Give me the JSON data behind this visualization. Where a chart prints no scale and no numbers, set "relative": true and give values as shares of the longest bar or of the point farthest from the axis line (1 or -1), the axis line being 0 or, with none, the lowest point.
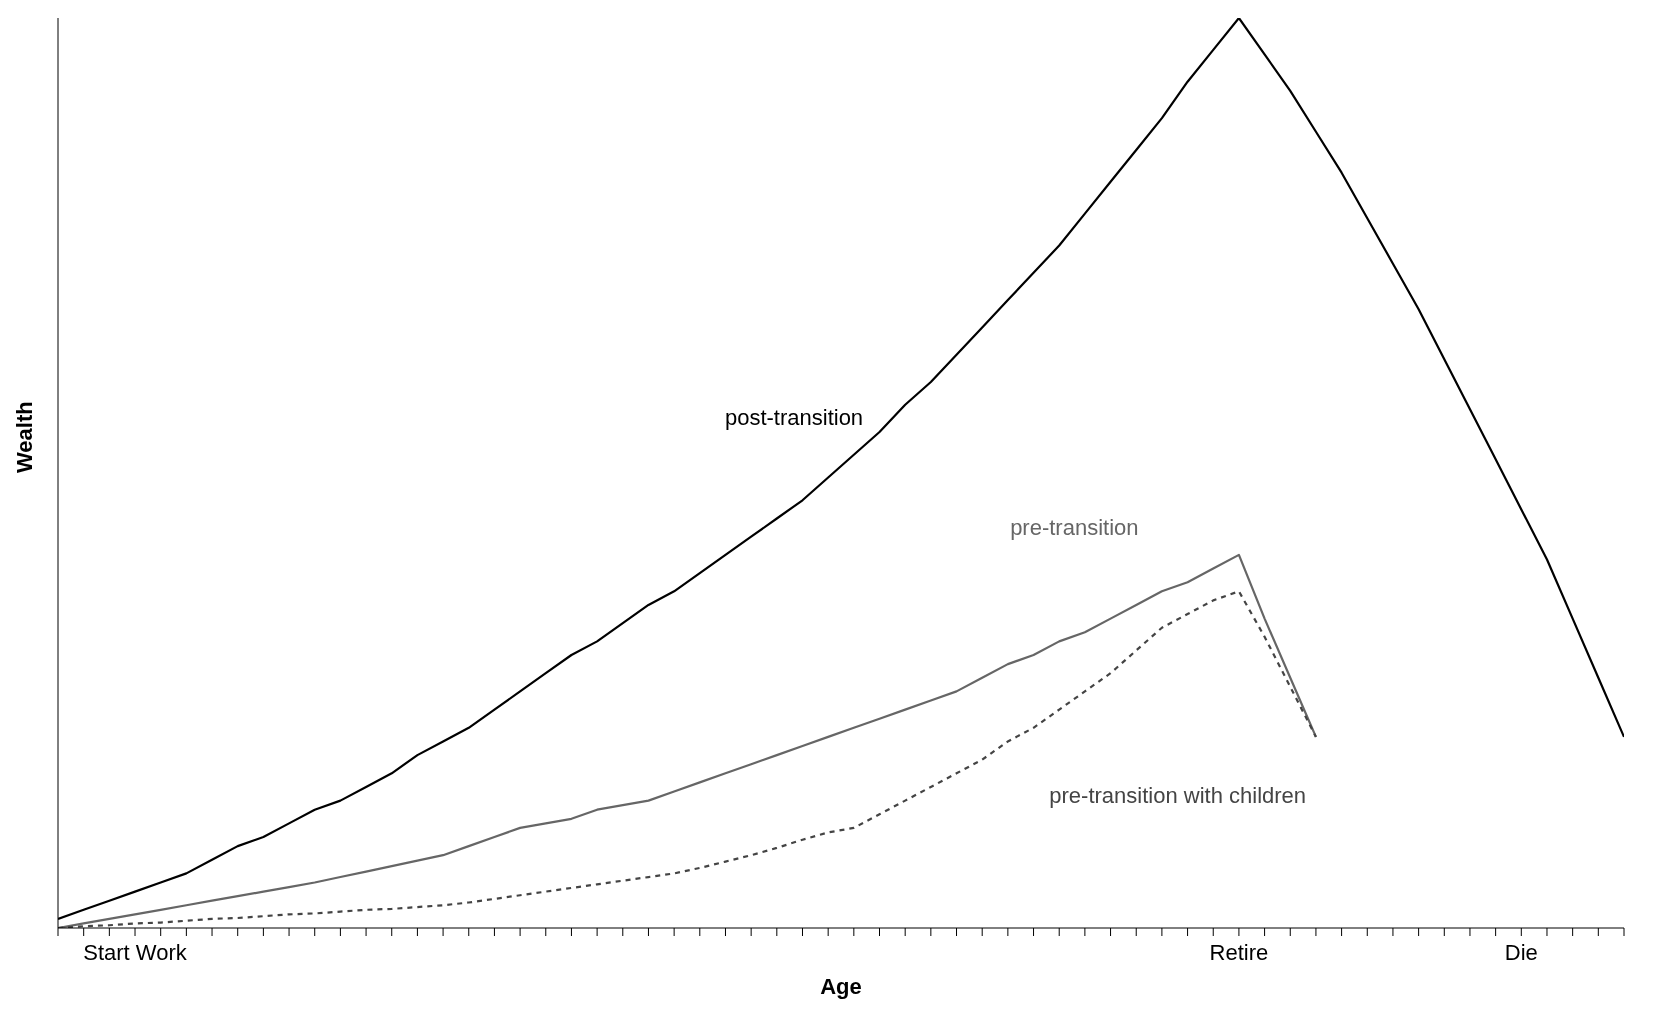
{
  "chart_data": {
    "type": "line",
    "relative": true,
    "xlabel": "Age",
    "ylabel": "Wealth",
    "categories": [
      null,
      null,
      null,
      "Start Work",
      null,
      null,
      null,
      null,
      null,
      null,
      null,
      null,
      null,
      null,
      null,
      null,
      null,
      null,
      null,
      null,
      null,
      null,
      null,
      null,
      null,
      null,
      null,
      null,
      null,
      null,
      null,
      null,
      null,
      null,
      null,
      null,
      null,
      null,
      null,
      null,
      null,
      null,
      null,
      null,
      null,
      null,
      "Retire",
      null,
      null,
      null,
      null,
      null,
      null,
      null,
      null,
      null,
      null,
      "Die",
      null,
      null,
      null,
      null
    ],
    "marker": "none",
    "grid": false,
    "legend": false,
    "series": [
      {
        "name": "post-transition",
        "color": "#000000",
        "line_style": "solid",
        "values": [
          0.01,
          0.02,
          0.03,
          0.04,
          0.05,
          0.06,
          0.075,
          0.09,
          0.1,
          0.115,
          0.13,
          0.14,
          0.155,
          0.17,
          0.19,
          0.205,
          0.22,
          0.24,
          0.26,
          0.28,
          0.3,
          0.315,
          0.335,
          0.355,
          0.37,
          0.39,
          0.41,
          0.43,
          0.45,
          0.47,
          0.495,
          0.52,
          0.545,
          0.575,
          0.6,
          0.63,
          0.66,
          0.69,
          0.72,
          0.75,
          0.785,
          0.82,
          0.855,
          0.89,
          0.93,
          0.965,
          1,
          0.96,
          0.92,
          0.875,
          0.83,
          0.78,
          0.73,
          0.68,
          0.625,
          0.57,
          0.515,
          0.46,
          0.405,
          0.34,
          0.275,
          0.21
        ]
      },
      {
        "name": "pre-transition",
        "color": "#666666",
        "line_style": "solid",
        "values": [
          0,
          0.005,
          0.01,
          0.015,
          0.02,
          0.025,
          0.03,
          0.035,
          0.04,
          0.045,
          0.05,
          0.056,
          0.062,
          0.068,
          0.074,
          0.08,
          0.09,
          0.1,
          0.11,
          0.115,
          0.12,
          0.13,
          0.135,
          0.14,
          0.15,
          0.16,
          0.17,
          0.18,
          0.19,
          0.2,
          0.21,
          0.22,
          0.23,
          0.24,
          0.25,
          0.26,
          0.275,
          0.29,
          0.3,
          0.315,
          0.325,
          0.34,
          0.355,
          0.37,
          0.38,
          0.395,
          0.41,
          0.34,
          0.275,
          0.21,
          null,
          null,
          null,
          null,
          null,
          null,
          null,
          null,
          null,
          null,
          null,
          null
        ]
      },
      {
        "name": "pre-transition with children",
        "color": "#444444",
        "line_style": "dashed",
        "values": [
          0,
          0.002,
          0.003,
          0.005,
          0.006,
          0.008,
          0.01,
          0.011,
          0.013,
          0.015,
          0.016,
          0.018,
          0.02,
          0.021,
          0.023,
          0.025,
          0.028,
          0.032,
          0.036,
          0.04,
          0.044,
          0.048,
          0.052,
          0.056,
          0.06,
          0.066,
          0.073,
          0.08,
          0.088,
          0.097,
          0.105,
          0.11,
          0.125,
          0.14,
          0.155,
          0.17,
          0.185,
          0.205,
          0.22,
          0.24,
          0.26,
          0.28,
          0.305,
          0.33,
          0.345,
          0.36,
          0.37,
          0.32,
          0.265,
          0.21,
          null,
          null,
          null,
          null,
          null,
          null,
          null,
          null,
          null,
          null,
          null,
          null
        ]
      }
    ]
  }
}
